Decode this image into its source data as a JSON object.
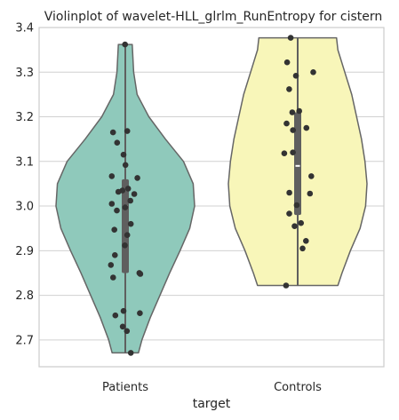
{
  "chart_data": {
    "type": "violin",
    "title": "Violinplot of wavelet-HLL_glrlm_RunEntropy for cistern",
    "xlabel": "target",
    "ylabel": "",
    "ylim": [
      2.64,
      3.4
    ],
    "yticks": [
      2.7,
      2.8,
      2.9,
      3.0,
      3.1,
      3.2,
      3.3,
      3.4
    ],
    "ytick_labels": [
      "2.7",
      "2.8",
      "2.9",
      "3.0",
      "3.1",
      "3.2",
      "3.3",
      "3.4"
    ],
    "grid": "horizontal",
    "categories": [
      "Patients",
      "Controls"
    ],
    "colors": {
      "Patients": "#8fc9bb",
      "Controls": "#f8f6b9",
      "outline": "#666666",
      "points": "#333333",
      "grid": "#d0d0d0"
    },
    "series": [
      {
        "category": "Patients",
        "min": 2.671,
        "max": 3.362,
        "q1": 2.85,
        "median": 3.0,
        "q3": 3.06,
        "density": [
          [
            2.671,
            0.19
          ],
          [
            2.7,
            0.24
          ],
          [
            2.75,
            0.36
          ],
          [
            2.8,
            0.5
          ],
          [
            2.85,
            0.64
          ],
          [
            2.9,
            0.79
          ],
          [
            2.95,
            0.93
          ],
          [
            3.0,
            1.0
          ],
          [
            3.05,
            0.98
          ],
          [
            3.1,
            0.84
          ],
          [
            3.15,
            0.58
          ],
          [
            3.2,
            0.34
          ],
          [
            3.25,
            0.17
          ],
          [
            3.3,
            0.12
          ],
          [
            3.362,
            0.1
          ]
        ],
        "points": [
          3.362,
          3.168,
          3.165,
          3.142,
          3.115,
          3.092,
          3.067,
          3.063,
          3.039,
          3.035,
          3.032,
          3.027,
          3.012,
          3.005,
          2.997,
          2.99,
          2.96,
          2.947,
          2.935,
          2.912,
          2.89,
          2.868,
          2.85,
          2.848,
          2.84,
          2.765,
          2.76,
          2.755,
          2.73,
          2.72,
          2.671
        ]
      },
      {
        "category": "Controls",
        "min": 2.822,
        "max": 3.377,
        "q1": 2.98,
        "median": 3.09,
        "q3": 3.21,
        "density": [
          [
            2.822,
            0.58
          ],
          [
            2.85,
            0.64
          ],
          [
            2.9,
            0.76
          ],
          [
            2.95,
            0.9
          ],
          [
            3.0,
            0.98
          ],
          [
            3.05,
            1.0
          ],
          [
            3.1,
            0.97
          ],
          [
            3.15,
            0.92
          ],
          [
            3.2,
            0.85
          ],
          [
            3.25,
            0.78
          ],
          [
            3.3,
            0.68
          ],
          [
            3.35,
            0.58
          ],
          [
            3.377,
            0.56
          ]
        ],
        "points": [
          3.377,
          3.322,
          3.3,
          3.292,
          3.262,
          3.213,
          3.21,
          3.185,
          3.175,
          3.17,
          3.12,
          3.118,
          3.067,
          3.03,
          3.028,
          3.002,
          2.983,
          2.962,
          2.955,
          2.922,
          2.905,
          2.822
        ]
      }
    ]
  }
}
